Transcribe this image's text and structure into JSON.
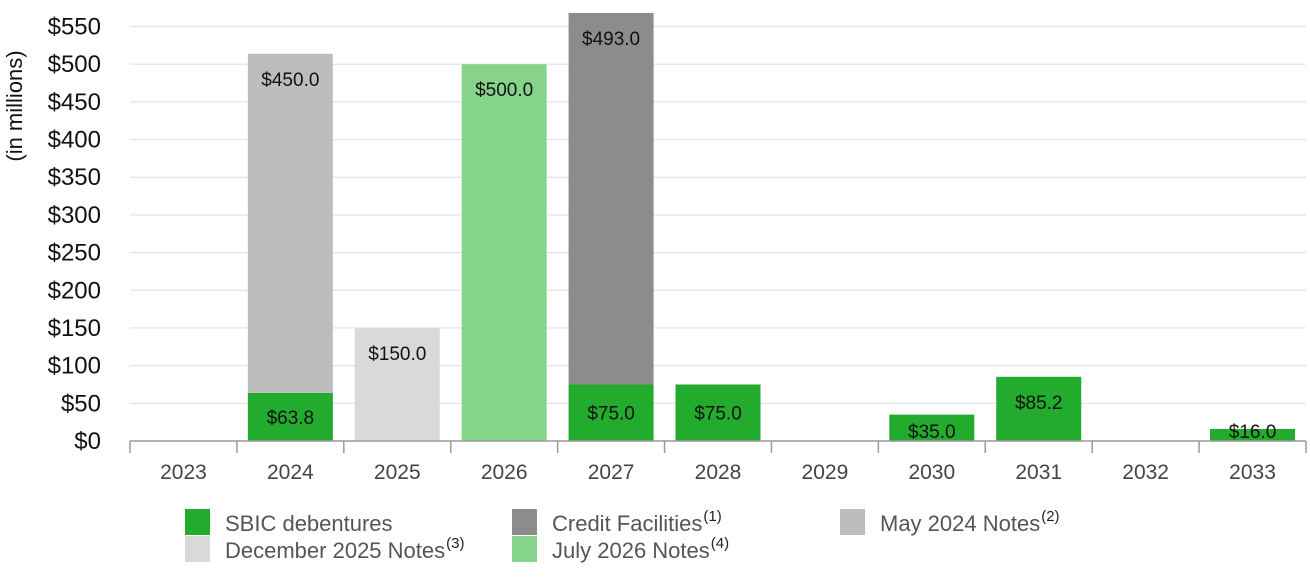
{
  "chart_data": {
    "type": "bar",
    "stacked": true,
    "ylabel": "(in millions)",
    "ylim": [
      0,
      550
    ],
    "yticks": [
      "$0",
      "$50",
      "$100",
      "$150",
      "$200",
      "$250",
      "$300",
      "$350",
      "$400",
      "$450",
      "$500",
      "$550"
    ],
    "ytick_values": [
      0,
      50,
      100,
      150,
      200,
      250,
      300,
      350,
      400,
      450,
      500,
      550
    ],
    "categories": [
      "2023",
      "2024",
      "2025",
      "2026",
      "2027",
      "2028",
      "2029",
      "2030",
      "2031",
      "2032",
      "2033"
    ],
    "grid": true,
    "legend_position": "bottom",
    "series": [
      {
        "name": "SBIC debentures",
        "color": "#22ab2d",
        "values": [
          0,
          63.8,
          0,
          0,
          75.0,
          75.0,
          0,
          35.0,
          85.2,
          0,
          16.0
        ],
        "labels": [
          "",
          "$63.8",
          "",
          "",
          "$75.0",
          "$75.0",
          "",
          "$35.0",
          "$85.2",
          "",
          "$16.0"
        ]
      },
      {
        "name": "Credit Facilities",
        "sup": "(1)",
        "color": "#8c8c8c",
        "values": [
          0,
          0,
          0,
          0,
          493.0,
          0,
          0,
          0,
          0,
          0,
          0
        ],
        "labels": [
          "",
          "",
          "",
          "",
          "$493.0",
          "",
          "",
          "",
          "",
          "",
          ""
        ]
      },
      {
        "name": "May 2024 Notes",
        "sup": "(2)",
        "color": "#bdbdbd",
        "values": [
          0,
          450.0,
          0,
          0,
          0,
          0,
          0,
          0,
          0,
          0,
          0
        ],
        "labels": [
          "",
          "$450.0",
          "",
          "",
          "",
          "",
          "",
          "",
          "",
          "",
          ""
        ]
      },
      {
        "name": "December 2025 Notes",
        "sup": "(3)",
        "color": "#d9d9d9",
        "values": [
          0,
          0,
          150.0,
          0,
          0,
          0,
          0,
          0,
          0,
          0,
          0
        ],
        "labels": [
          "",
          "",
          "$150.0",
          "",
          "",
          "",
          "",
          "",
          "",
          "",
          ""
        ]
      },
      {
        "name": "July 2026 Notes",
        "sup": "(4)",
        "color": "#86d38c",
        "values": [
          0,
          0,
          0,
          500.0,
          0,
          0,
          0,
          0,
          0,
          0,
          0
        ],
        "labels": [
          "",
          "",
          "",
          "$500.0",
          "",
          "",
          "",
          "",
          "",
          "",
          ""
        ]
      }
    ],
    "legend_order": [
      0,
      1,
      2,
      3,
      4
    ]
  }
}
